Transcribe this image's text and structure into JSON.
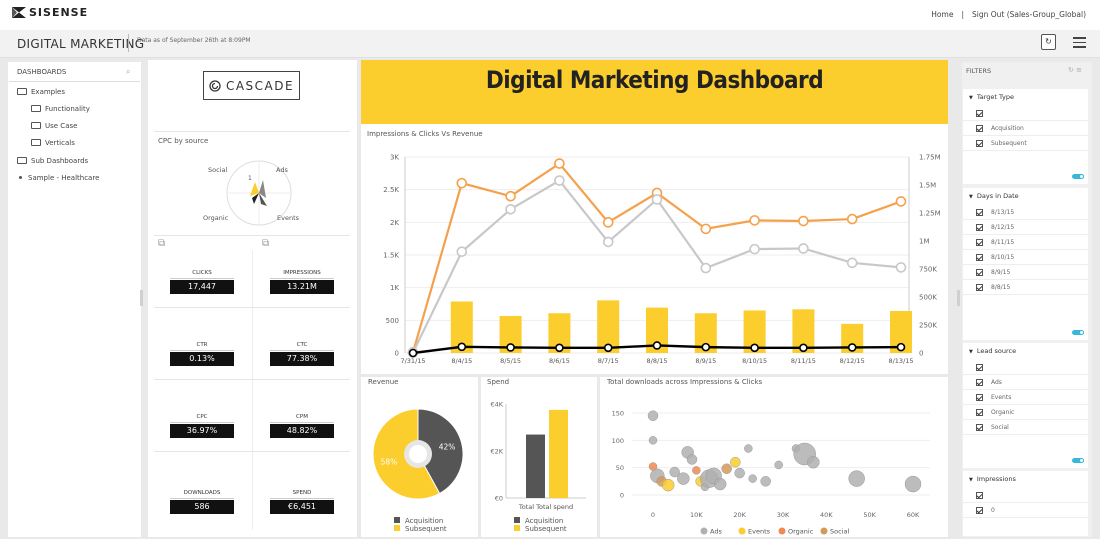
{
  "topbar": {
    "logo_text": "SISENSE",
    "home": "Home",
    "separator": "|",
    "signout": "Sign Out (Sales-Group_Global)"
  },
  "subbar": {
    "title": "DIGITAL MARKETING",
    "data_as": "Data as of September 26th at 8:09PM"
  },
  "left_panel": {
    "header": "DASHBOARDS",
    "items": [
      {
        "label": "Examples",
        "type": "folder-open"
      },
      {
        "label": "Functionality",
        "type": "folder"
      },
      {
        "label": "Use Case",
        "type": "folder"
      },
      {
        "label": "Verticals",
        "type": "folder"
      },
      {
        "label": "Sub Dashboards",
        "type": "folder"
      },
      {
        "label": "Sample - Healthcare",
        "type": "dashboard"
      }
    ]
  },
  "cascade": {
    "label": "CASCADE"
  },
  "cpc": {
    "title": "CPC by source",
    "labels": [
      "Social",
      "Ads",
      "Organic",
      "Events"
    ],
    "center": "1"
  },
  "kpis": [
    {
      "label": "CLICKS",
      "value": "17,447"
    },
    {
      "label": "IMPRESSIONS",
      "value": "13.21M"
    },
    {
      "label": "CTR",
      "value": "0.13%"
    },
    {
      "label": "CTC",
      "value": "77.38%"
    },
    {
      "label": "CPC",
      "value": "36.97%"
    },
    {
      "label": "CPM",
      "value": "48.82%"
    },
    {
      "label": "DOWNLOADS",
      "value": "586"
    },
    {
      "label": "SPEND",
      "value": "€6,451"
    }
  ],
  "banner": {
    "title": "Digital Marketing Dashboard"
  },
  "colors": {
    "orange": "#f5a04a",
    "gray": "#c8c8c8",
    "yellow": "#fbcd2d",
    "dark": "#555555",
    "black": "#000000"
  },
  "chart_data": [
    {
      "type": "bar+line",
      "title": "Impressions & Clicks Vs Revenue",
      "categories": [
        "7/31/15",
        "8/4/15",
        "8/5/15",
        "8/6/15",
        "8/7/15",
        "8/8/15",
        "8/9/15",
        "8/10/15",
        "8/11/15",
        "8/12/15",
        "8/13/15"
      ],
      "ylim_left": [
        0,
        3000
      ],
      "yticks_left": [
        "0",
        "500",
        "1K",
        "1.5K",
        "2K",
        "2.5K",
        "3K"
      ],
      "ylim_right": [
        0,
        1750000
      ],
      "yticks_right": [
        "0",
        "250K",
        "500K",
        "750K",
        "1M",
        "1.25M",
        "1.5M",
        "1.75M"
      ],
      "series": [
        {
          "axis": "right",
          "kind": "bar",
          "values": [
            0,
            460000,
            330000,
            355000,
            470000,
            405000,
            355000,
            380000,
            390000,
            260000,
            375000
          ]
        },
        {
          "axis": "left",
          "kind": "line",
          "values": [
            10,
            2600,
            2400,
            2900,
            2000,
            2450,
            1900,
            2030,
            2020,
            2050,
            2320
          ]
        },
        {
          "axis": "left",
          "kind": "line",
          "values": [
            5,
            1550,
            2200,
            2640,
            1700,
            2350,
            1300,
            1590,
            1600,
            1380,
            1310
          ]
        },
        {
          "axis": "left",
          "kind": "line",
          "values": [
            0,
            95,
            85,
            80,
            80,
            115,
            90,
            80,
            80,
            85,
            90
          ]
        }
      ]
    },
    {
      "type": "pie",
      "title": "Revenue",
      "slices": [
        {
          "name": "Subsequent",
          "value": 58,
          "label": "58%"
        },
        {
          "name": "Acquisition",
          "value": 42,
          "label": "42%"
        }
      ],
      "legend": [
        "Acquisition",
        "Subsequent"
      ]
    },
    {
      "type": "bar",
      "title": "Spend",
      "categories": [
        "Acquisition",
        "Subsequent"
      ],
      "values": [
        2700,
        3750
      ],
      "ylim": [
        0,
        4000
      ],
      "yticks": [
        "€0",
        "€2K",
        "€4K"
      ],
      "xlabel": "Total Total spend",
      "legend": [
        "Acquisition",
        "Subsequent"
      ]
    },
    {
      "type": "scatter",
      "title": "Total downloads across Impressions & Clicks",
      "xlim": [
        -5000,
        65000
      ],
      "ylim": [
        -5,
        160
      ],
      "xticks": [
        "0",
        "10K",
        "20K",
        "30K",
        "40K",
        "50K",
        "60K"
      ],
      "yticks": [
        "0",
        "50",
        "100",
        "150"
      ],
      "legend": [
        {
          "name": "Ads",
          "color": "#b0b0b0"
        },
        {
          "name": "Events",
          "color": "#fbcd2d"
        },
        {
          "name": "Organic",
          "color": "#f08a50"
        },
        {
          "name": "Social",
          "color": "#d49a5a"
        }
      ],
      "points": [
        {
          "x": 0,
          "y": 145,
          "s": "Ads",
          "r": 5
        },
        {
          "x": 0,
          "y": 100,
          "s": "Ads",
          "r": 4
        },
        {
          "x": 0,
          "y": 52,
          "s": "Organic",
          "r": 4
        },
        {
          "x": 1000,
          "y": 35,
          "s": "Ads",
          "r": 7
        },
        {
          "x": 2000,
          "y": 25,
          "s": "Social",
          "r": 5
        },
        {
          "x": 3500,
          "y": 18,
          "s": "Events",
          "r": 6
        },
        {
          "x": 5000,
          "y": 42,
          "s": "Ads",
          "r": 5
        },
        {
          "x": 7000,
          "y": 30,
          "s": "Ads",
          "r": 6
        },
        {
          "x": 8000,
          "y": 78,
          "s": "Ads",
          "r": 6
        },
        {
          "x": 9000,
          "y": 65,
          "s": "Ads",
          "r": 5
        },
        {
          "x": 10000,
          "y": 45,
          "s": "Organic",
          "r": 4
        },
        {
          "x": 11000,
          "y": 25,
          "s": "Events",
          "r": 5
        },
        {
          "x": 12000,
          "y": 15,
          "s": "Ads",
          "r": 4
        },
        {
          "x": 13000,
          "y": 30,
          "s": "Ads",
          "r": 9
        },
        {
          "x": 14000,
          "y": 35,
          "s": "Ads",
          "r": 8
        },
        {
          "x": 15500,
          "y": 20,
          "s": "Ads",
          "r": 6
        },
        {
          "x": 17000,
          "y": 48,
          "s": "Social",
          "r": 5
        },
        {
          "x": 19000,
          "y": 60,
          "s": "Events",
          "r": 5
        },
        {
          "x": 20000,
          "y": 40,
          "s": "Ads",
          "r": 5
        },
        {
          "x": 22000,
          "y": 85,
          "s": "Ads",
          "r": 4
        },
        {
          "x": 23000,
          "y": 30,
          "s": "Ads",
          "r": 4
        },
        {
          "x": 26000,
          "y": 25,
          "s": "Ads",
          "r": 5
        },
        {
          "x": 29000,
          "y": 55,
          "s": "Ads",
          "r": 4
        },
        {
          "x": 33000,
          "y": 85,
          "s": "Ads",
          "r": 4
        },
        {
          "x": 35000,
          "y": 75,
          "s": "Ads",
          "r": 11
        },
        {
          "x": 37000,
          "y": 60,
          "s": "Ads",
          "r": 6
        },
        {
          "x": 47000,
          "y": 30,
          "s": "Ads",
          "r": 8
        },
        {
          "x": 60000,
          "y": 20,
          "s": "Ads",
          "r": 8
        }
      ]
    }
  ],
  "filters": {
    "header": "FILTERS",
    "groups": [
      {
        "title": "Target Type",
        "items": [
          "",
          "Acquisition",
          "Subsequent"
        ]
      },
      {
        "title": "Days in Date",
        "items": [
          "8/13/15",
          "8/12/15",
          "8/11/15",
          "8/10/15",
          "8/9/15",
          "8/8/15"
        ]
      },
      {
        "title": "Lead source",
        "items": [
          "",
          "Ads",
          "Events",
          "Organic",
          "Social"
        ]
      },
      {
        "title": "Impressions",
        "items": [
          "",
          "0"
        ]
      }
    ]
  }
}
